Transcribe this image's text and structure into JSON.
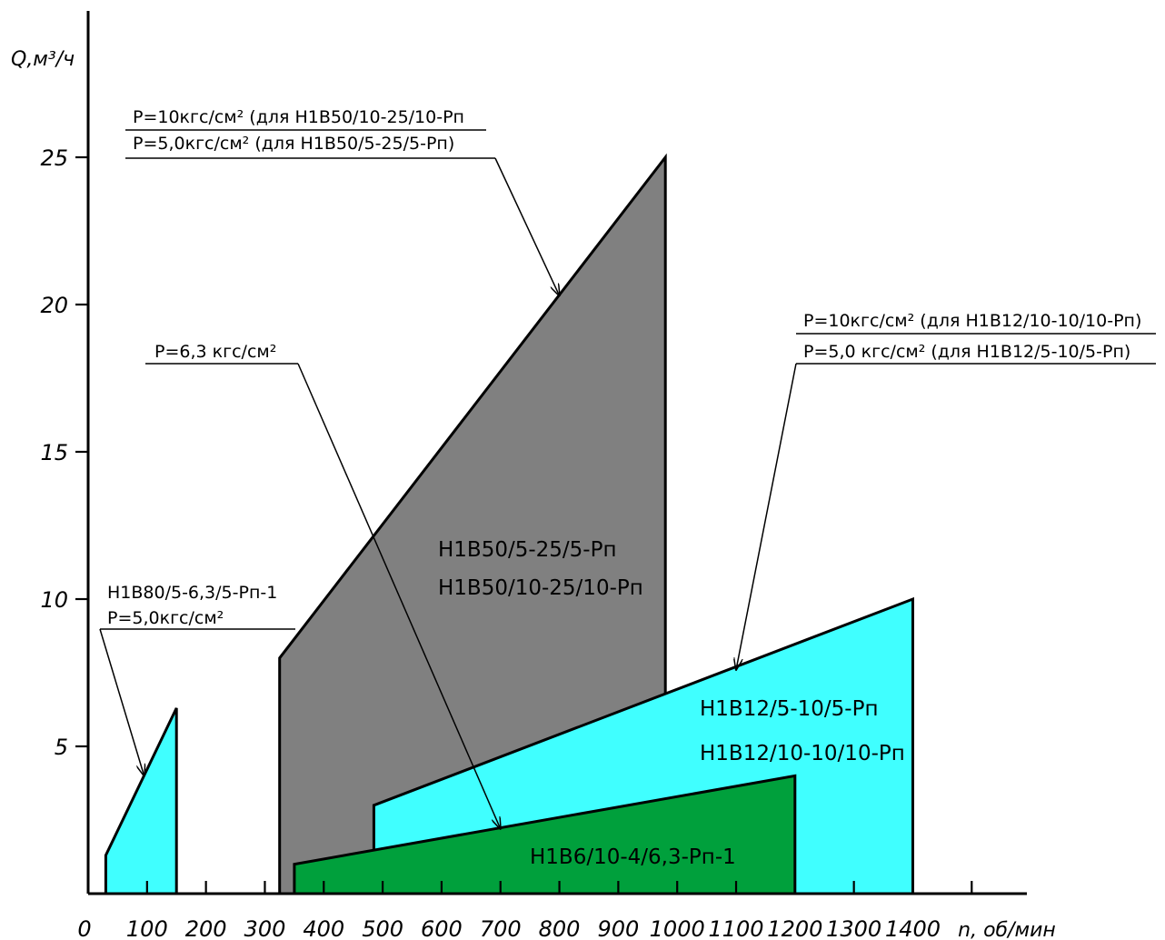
{
  "chart_data": {
    "type": "area",
    "xlabel": "n, об/мин",
    "ylabel": "Q,м³/ч",
    "xlim": [
      0,
      1600
    ],
    "ylim": [
      0,
      30
    ],
    "x_ticks": [
      0,
      100,
      200,
      300,
      400,
      500,
      600,
      700,
      800,
      900,
      1000,
      1100,
      1200,
      1300,
      1400
    ],
    "y_ticks": [
      5,
      10,
      15,
      20,
      25
    ],
    "colors": {
      "cyan": "#40ffff",
      "gray": "#808080",
      "green": "#00a03c"
    },
    "regions": [
      {
        "name": "Н1В80/5-6,3/5-Рп-1",
        "color": "cyan",
        "polygon": [
          [
            30,
            0
          ],
          [
            30,
            1.3
          ],
          [
            150,
            6.3
          ],
          [
            150,
            0
          ]
        ],
        "labels": []
      },
      {
        "name": "Н1В50",
        "color": "gray",
        "polygon": [
          [
            325,
            0
          ],
          [
            325,
            8
          ],
          [
            980,
            25
          ],
          [
            980,
            0
          ]
        ],
        "labels": [
          "Н1В50/5-25/5-Рп",
          "Н1В50/10-25/10-Рп"
        ]
      },
      {
        "name": "Н1В12",
        "color": "cyan",
        "polygon": [
          [
            485,
            0
          ],
          [
            485,
            3
          ],
          [
            1400,
            10
          ],
          [
            1400,
            0
          ]
        ],
        "labels": [
          "Н1В12/5-10/5-Рп",
          "Н1В12/10-10/10-Рп"
        ]
      },
      {
        "name": "Н1В6",
        "color": "green",
        "polygon": [
          [
            350,
            0
          ],
          [
            350,
            1
          ],
          [
            1200,
            4
          ],
          [
            1200,
            0
          ]
        ],
        "labels": [
          "Н1В6/10-4/6,3-Рп-1"
        ]
      }
    ],
    "annotations": [
      {
        "lines": [
          "Р=10кгс/см² (для Н1В50/10-25/10-Рп",
          "Р=5,0кгс/см² (для Н1В50/5-25/5-Рп)"
        ],
        "target": [
          800,
          20.3
        ]
      },
      {
        "lines": [
          "Р=10кгс/см² (для Н1В12/10-10/10-Рп)",
          "Р=5,0 кгс/см² (для Н1В12/5-10/5-Рп)"
        ],
        "target": [
          1100,
          7.6
        ]
      },
      {
        "lines": [
          "Р=6,3 кгс/см²"
        ],
        "target": [
          700,
          2.2
        ]
      },
      {
        "lines": [
          "Н1В80/5-6,3/5-Рп-1",
          "Р=5,0кгс/см²"
        ],
        "target": [
          95,
          4.0
        ]
      }
    ]
  }
}
